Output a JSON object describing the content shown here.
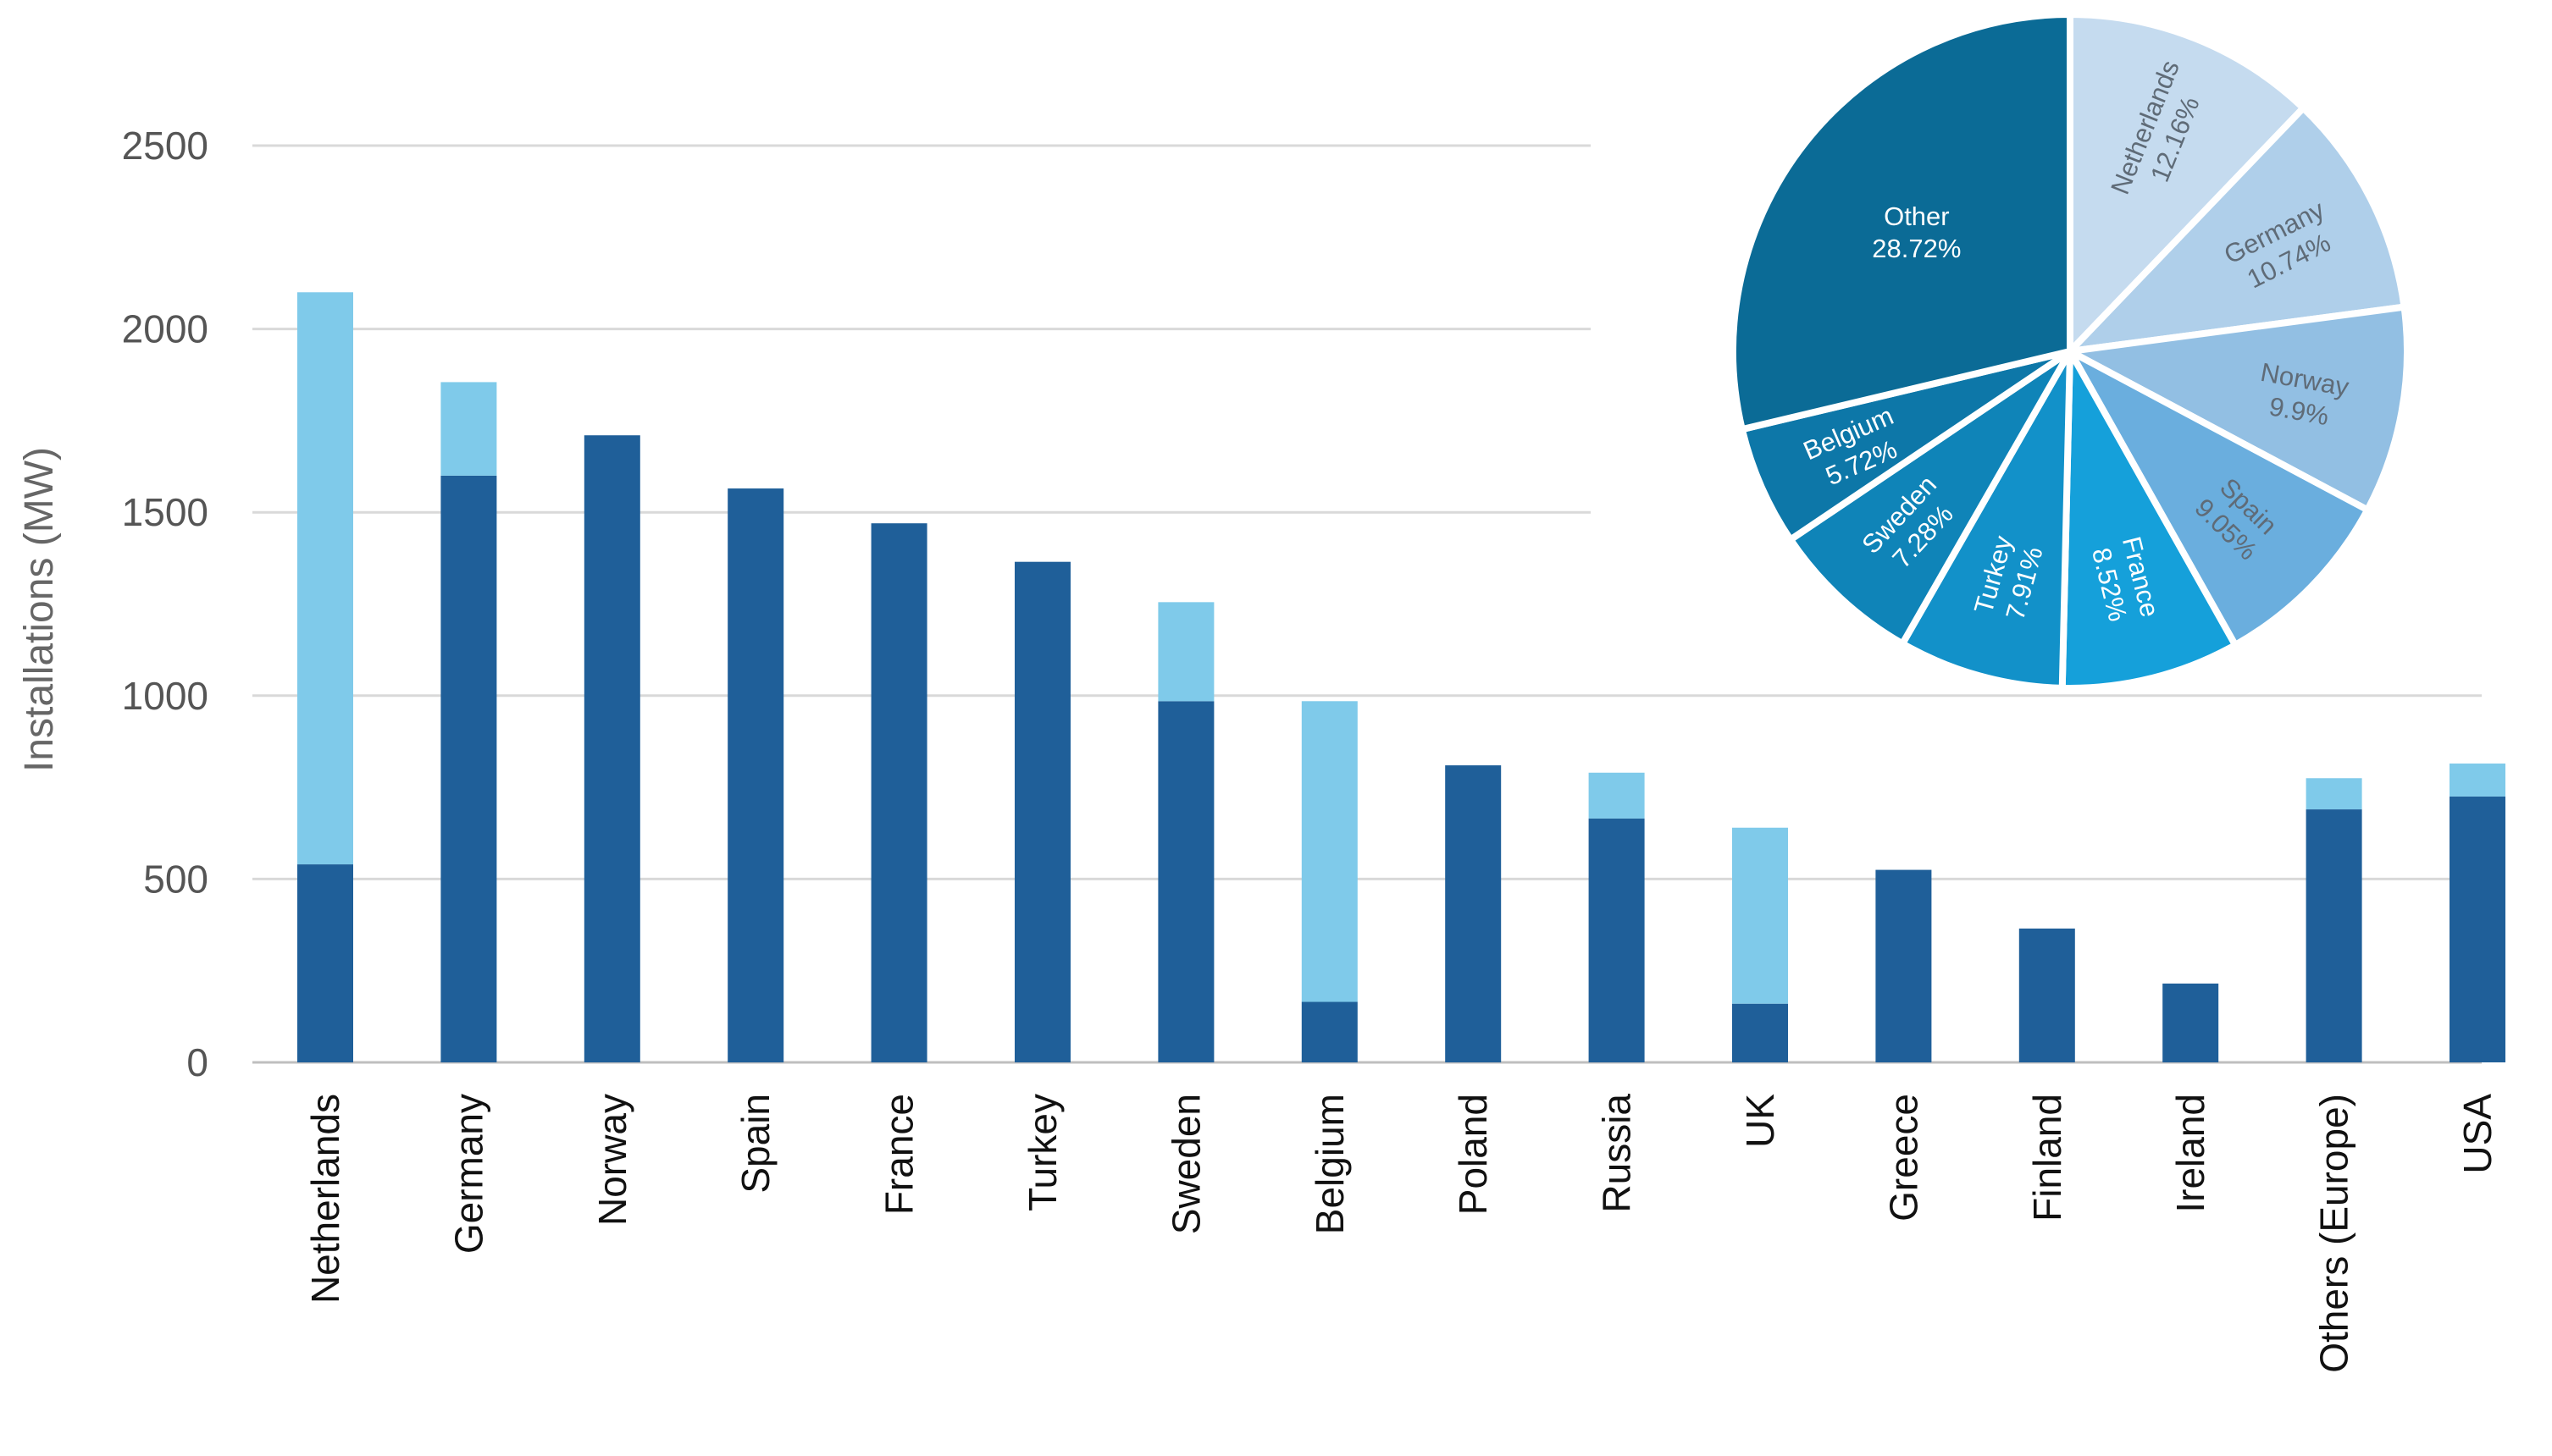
{
  "chart_data": [
    {
      "type": "bar",
      "stacked": true,
      "title": "",
      "xlabel": "",
      "ylabel": "Installations (MW)",
      "ylim": [
        0,
        2500
      ],
      "yticks": [
        0,
        500,
        1000,
        1500,
        2000,
        2500
      ],
      "grid": true,
      "categories": [
        "Netherlands",
        "Germany",
        "Norway",
        "Spain",
        "France",
        "Turkey",
        "Sweden",
        "Belgium",
        "Poland",
        "Russia",
        "UK",
        "Greece",
        "Finland",
        "Ireland",
        "Others (Europe)",
        "USA"
      ],
      "series": [
        {
          "color": "#1f5f99",
          "values": [
            540,
            1600,
            1710,
            1565,
            1470,
            1365,
            985,
            165,
            810,
            665,
            160,
            525,
            365,
            215,
            690,
            725
          ]
        },
        {
          "color": "#7fcaea",
          "values": [
            1560,
            255,
            0,
            0,
            0,
            0,
            270,
            820,
            0,
            125,
            480,
            0,
            0,
            0,
            85,
            90
          ]
        }
      ]
    },
    {
      "type": "pie",
      "title": "",
      "slices": [
        {
          "label": "Netherlands",
          "percent_label": "12.16%",
          "value": 12.16,
          "color": "#c5dbef"
        },
        {
          "label": "Germany",
          "percent_label": "10.74%",
          "value": 10.74,
          "color": "#afcfea"
        },
        {
          "label": "Norway",
          "percent_label": "9.9%",
          "value": 9.9,
          "color": "#92bfe3"
        },
        {
          "label": "Spain",
          "percent_label": "9.05%",
          "value": 9.05,
          "color": "#6aaede"
        },
        {
          "label": "France",
          "percent_label": "8.52%",
          "value": 8.52,
          "color": "#15a0da"
        },
        {
          "label": "Turkey",
          "percent_label": "7.91%",
          "value": 7.91,
          "color": "#1291c9"
        },
        {
          "label": "Sweden",
          "percent_label": "7.28%",
          "value": 7.28,
          "color": "#0f84b8"
        },
        {
          "label": "Belgium",
          "percent_label": "5.72%",
          "value": 5.72,
          "color": "#0d77a8"
        },
        {
          "label": "Other",
          "percent_label": "28.72%",
          "value": 28.72,
          "color": "#0b6b96"
        }
      ]
    }
  ]
}
